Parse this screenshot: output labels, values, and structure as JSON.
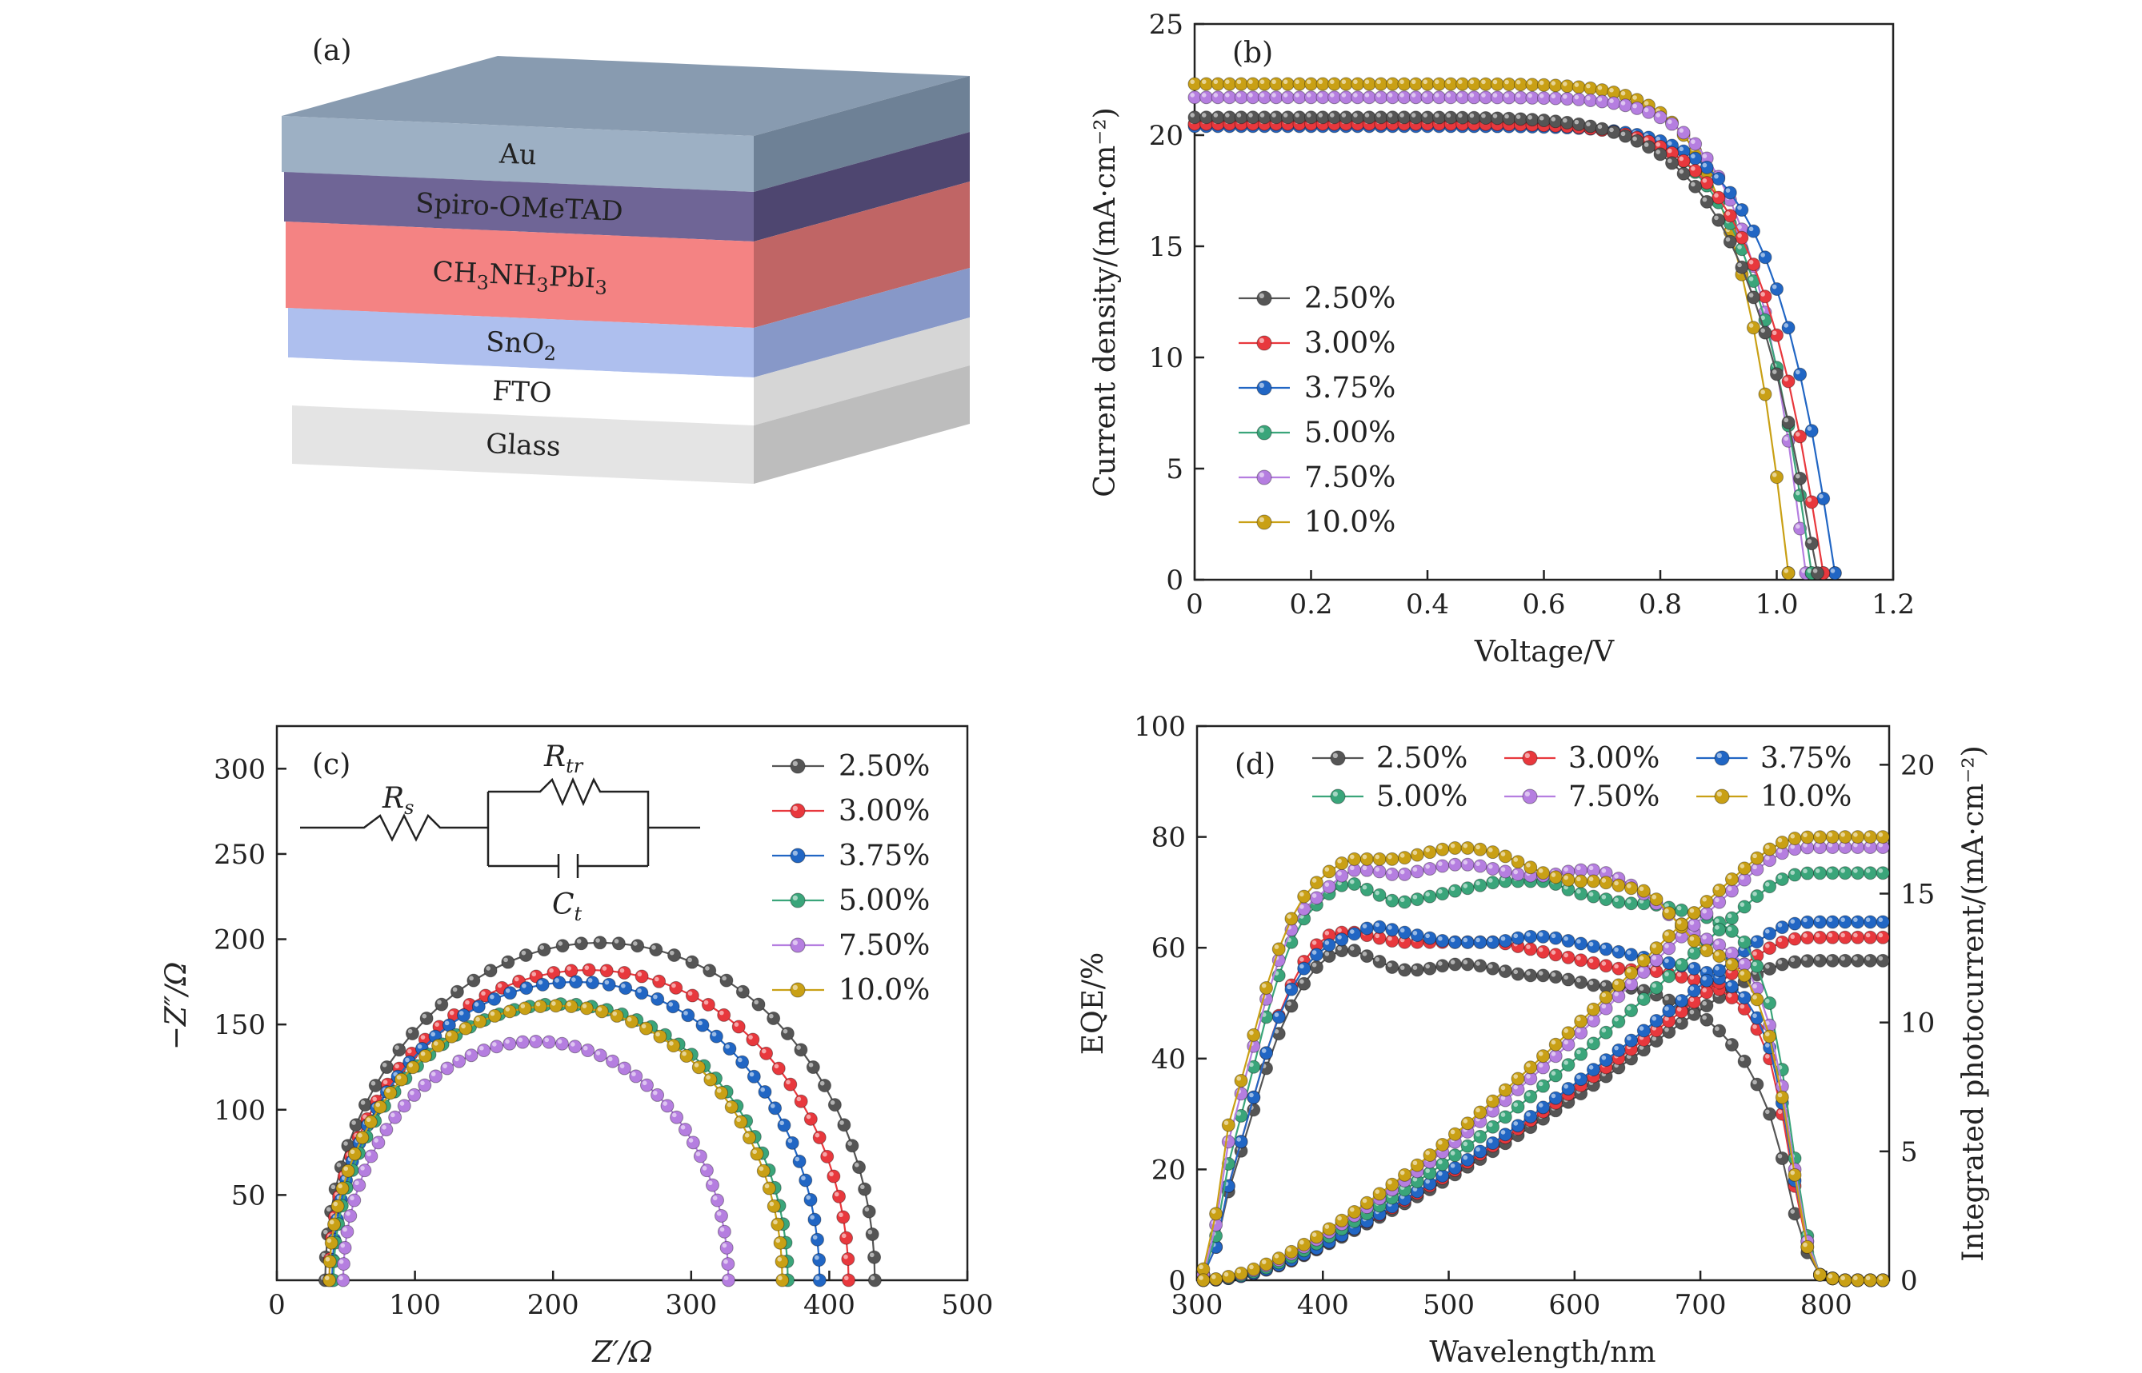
{
  "panels": {
    "a": {
      "label": "(a)",
      "layers": [
        {
          "name": "Au",
          "sub": "",
          "tail": "",
          "color": "#9db0c4",
          "side": "#6e8196"
        },
        {
          "name": "Spiro-OMeTAD",
          "sub": "",
          "tail": "",
          "color": "#6f6596",
          "side": "#4e4670"
        },
        {
          "name": "CH",
          "sub": "3",
          "tail": "NH3PbI3",
          "color": "#f48383",
          "side": "#c06565"
        },
        {
          "name": "SnO",
          "sub": "2",
          "tail": "",
          "color": "#aebfee",
          "side": "#8798c8"
        },
        {
          "name": "FTO",
          "sub": "",
          "tail": "",
          "color": "#ffffff",
          "side": "#d6d6d6"
        },
        {
          "name": "Glass",
          "sub": "",
          "tail": "",
          "color": "#e4e4e4",
          "side": "#bdbdbd"
        }
      ],
      "layer_text": [
        "Au",
        "Spiro-OMeTAD",
        "CH3NH3PbI3",
        "SnO2",
        "FTO",
        "Glass"
      ]
    },
    "c_circuit": {
      "rs": "R",
      "rs_sub": "s",
      "rtr": "R",
      "rtr_sub": "tr",
      "ct": "C",
      "ct_sub": "t"
    }
  },
  "series_names": [
    "2.50%",
    "3.00%",
    "3.75%",
    "5.00%",
    "7.50%",
    "10.0%"
  ],
  "series_colors": [
    "#555555",
    "#e8383d",
    "#2166c4",
    "#3aa57a",
    "#b57ee0",
    "#c9a015"
  ],
  "chart_data": [
    {
      "id": "b",
      "type": "line",
      "panel_label": "(b)",
      "xlabel": "Voltage/V",
      "ylabel": "Current density/(mA·cm⁻²)",
      "xlim": [
        0,
        1.2
      ],
      "ylim": [
        0,
        25
      ],
      "xticks": [
        0,
        0.2,
        0.4,
        0.6,
        0.8,
        1.0,
        1.2
      ],
      "xtick_labels": [
        "0",
        "0.2",
        "0.4",
        "0.6",
        "0.8",
        "1.0",
        "1.2"
      ],
      "yticks": [
        0,
        5,
        10,
        15,
        20,
        25
      ],
      "ytick_labels": [
        "0",
        "5",
        "10",
        "15",
        "20",
        "25"
      ],
      "legend": "center-left",
      "series": [
        {
          "name": "2.50%",
          "jsc": 20.8,
          "voc": 1.07,
          "n": 2.3
        },
        {
          "name": "3.00%",
          "jsc": 20.5,
          "voc": 1.08,
          "n": 1.8
        },
        {
          "name": "3.75%",
          "jsc": 20.4,
          "voc": 1.1,
          "n": 1.6
        },
        {
          "name": "5.00%",
          "jsc": 20.5,
          "voc": 1.06,
          "n": 1.6
        },
        {
          "name": "7.50%",
          "jsc": 21.7,
          "voc": 1.05,
          "n": 1.4
        },
        {
          "name": "10.0%",
          "jsc": 22.3,
          "voc": 1.02,
          "n": 1.4
        }
      ]
    },
    {
      "id": "c",
      "type": "scatter",
      "panel_label": "(c)",
      "xlabel": "Z′/Ω",
      "ylabel": "−Z″/Ω",
      "xlim": [
        0,
        500
      ],
      "ylim": [
        0,
        325
      ],
      "xticks": [
        0,
        100,
        200,
        300,
        400,
        500
      ],
      "xtick_labels": [
        "0",
        "100",
        "200",
        "300",
        "400",
        "500"
      ],
      "yticks": [
        50,
        100,
        150,
        200,
        250,
        300
      ],
      "ytick_labels": [
        "50",
        "100",
        "150",
        "200",
        "250",
        "300"
      ],
      "legend": "top-right",
      "series": [
        {
          "name": "2.50%",
          "x_start": 35,
          "x_end": 433,
          "peak": 198
        },
        {
          "name": "3.00%",
          "x_start": 38,
          "x_end": 414,
          "peak": 182
        },
        {
          "name": "3.75%",
          "x_start": 40,
          "x_end": 393,
          "peak": 175
        },
        {
          "name": "5.00%",
          "x_start": 41,
          "x_end": 370,
          "peak": 162
        },
        {
          "name": "7.50%",
          "x_start": 48,
          "x_end": 327,
          "peak": 140
        },
        {
          "name": "10.0%",
          "x_start": 38,
          "x_end": 366,
          "peak": 161
        }
      ]
    },
    {
      "id": "d",
      "type": "line",
      "panel_label": "(d)",
      "xlabel": "Wavelength/nm",
      "ylabel": "EQE/%",
      "y2label": "Integrated photocurrent/(mA·cm⁻²)",
      "xlim": [
        300,
        850
      ],
      "ylim": [
        0,
        100
      ],
      "y2lim": [
        0,
        21.5
      ],
      "xticks": [
        300,
        400,
        500,
        600,
        700,
        800
      ],
      "xtick_labels": [
        "300",
        "400",
        "500",
        "600",
        "700",
        "800"
      ],
      "yticks": [
        0,
        20,
        40,
        60,
        80,
        100
      ],
      "ytick_labels": [
        "0",
        "20",
        "40",
        "60",
        "80",
        "100"
      ],
      "y2ticks": [
        0,
        5,
        10,
        15,
        20
      ],
      "y2tick_labels": [
        "0",
        "5",
        "10",
        "15",
        "20"
      ],
      "legend": "top",
      "eqe_x": [
        305,
        315,
        325,
        340,
        360,
        380,
        400,
        420,
        440,
        460,
        480,
        500,
        520,
        540,
        560,
        580,
        600,
        620,
        640,
        660,
        680,
        700,
        720,
        740,
        755,
        765,
        775,
        785,
        795,
        810,
        850
      ],
      "series": [
        {
          "name": "2.50%",
          "eqe": [
            1,
            6,
            16,
            27,
            42,
            52,
            58,
            60,
            58,
            56,
            56,
            57,
            57,
            56,
            55,
            55,
            54,
            53,
            53,
            52,
            50,
            48,
            44,
            38,
            30,
            22,
            12,
            5,
            1,
            0,
            0
          ],
          "jint_final": 12.4
        },
        {
          "name": "3.00%",
          "eqe": [
            1,
            6,
            17,
            29,
            45,
            56,
            62,
            63,
            62,
            61,
            61,
            61,
            61,
            61,
            60,
            59,
            58,
            57,
            56,
            56,
            55,
            54,
            52,
            48,
            40,
            30,
            17,
            6,
            1,
            0,
            0
          ],
          "jint_final": 13.3
        },
        {
          "name": "3.75%",
          "eqe": [
            1,
            6,
            17,
            29,
            45,
            55,
            60,
            62,
            64,
            63,
            62,
            61,
            61,
            61,
            62,
            62,
            61,
            60,
            59,
            58,
            57,
            56,
            54,
            50,
            42,
            32,
            18,
            7,
            1,
            0,
            0
          ],
          "jint_final": 13.9
        },
        {
          "name": "5.00%",
          "eqe": [
            1,
            8,
            21,
            34,
            52,
            64,
            69,
            72,
            70,
            68,
            69,
            70,
            71,
            72,
            72,
            72,
            70,
            69,
            68,
            68,
            67,
            66,
            64,
            60,
            50,
            38,
            22,
            8,
            1,
            0,
            0
          ],
          "jint_final": 15.8
        },
        {
          "name": "7.50%",
          "eqe": [
            1,
            10,
            25,
            38,
            55,
            66,
            70,
            74,
            74,
            73,
            74,
            75,
            75,
            74,
            73,
            73,
            74,
            74,
            72,
            69,
            65,
            62,
            60,
            56,
            46,
            35,
            20,
            7,
            1,
            0,
            0
          ],
          "jint_final": 16.8
        },
        {
          "name": "10.0%",
          "eqe": [
            2,
            12,
            28,
            40,
            57,
            68,
            73,
            76,
            76,
            76,
            77,
            78,
            78,
            77,
            75,
            73,
            72,
            72,
            71,
            70,
            65,
            60,
            58,
            54,
            44,
            33,
            19,
            6,
            1,
            0,
            0
          ],
          "jint_final": 17.2
        }
      ]
    }
  ]
}
